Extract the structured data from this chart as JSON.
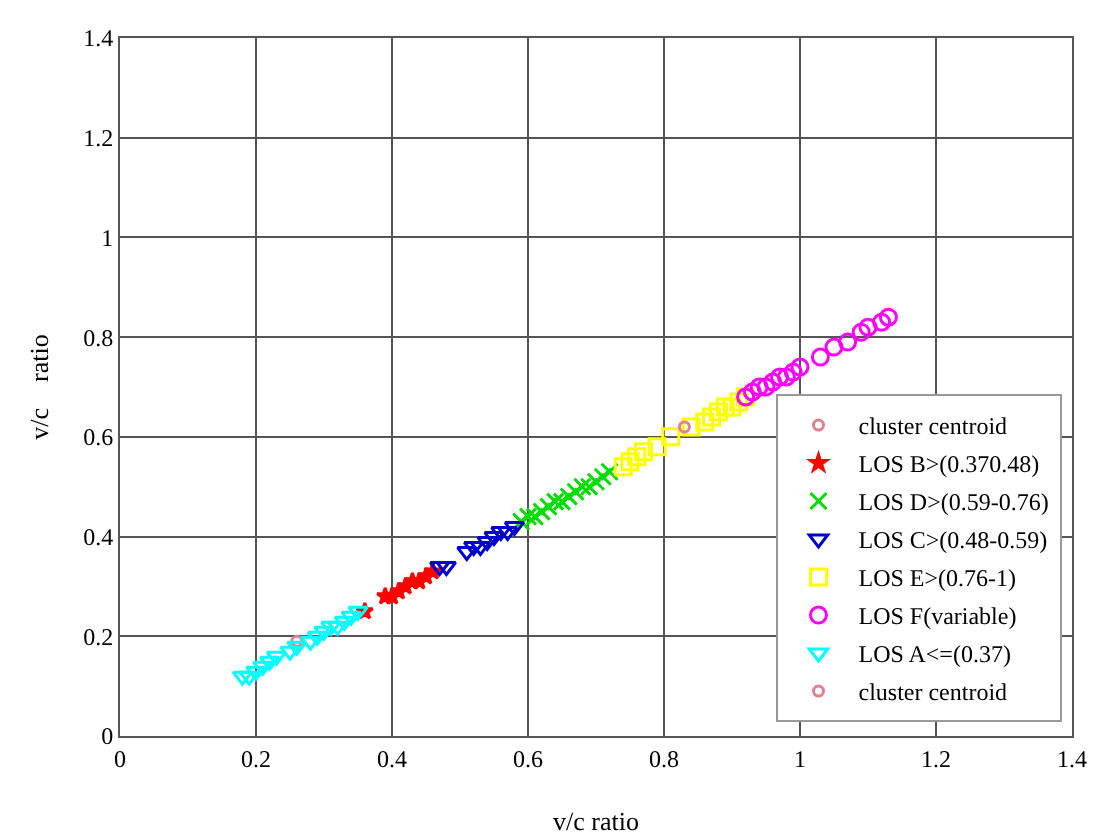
{
  "chart_data": {
    "type": "scatter",
    "xlabel": "v/c ratio",
    "ylabel": "v/c    ratio",
    "xlim": [
      0,
      1.4
    ],
    "xticks": [
      0,
      0.2,
      0.4,
      0.6,
      0.8,
      1,
      1.2,
      1.4
    ],
    "ylim": [
      0,
      1.4
    ],
    "yticks": [
      0,
      0.2,
      0.4,
      0.6,
      0.8,
      1,
      1.2,
      1.4
    ],
    "grid": true,
    "legend": "bottom right",
    "series": [
      {
        "name": "cluster centroid",
        "color": "#e08090",
        "marker": "circle",
        "x": [
          0.26
        ],
        "values": [
          0.19
        ]
      },
      {
        "name": "LOS B>(0.370.48)",
        "color": "#ff0000",
        "marker": "star",
        "x": [
          0.36,
          0.39,
          0.4,
          0.41,
          0.42,
          0.43,
          0.44,
          0.45,
          0.46
        ],
        "values": [
          0.25,
          0.28,
          0.28,
          0.29,
          0.3,
          0.31,
          0.31,
          0.32,
          0.33
        ]
      },
      {
        "name": "LOS D>(0.59-0.76)",
        "color": "#00dd00",
        "marker": "cross",
        "x": [
          0.59,
          0.6,
          0.61,
          0.62,
          0.63,
          0.64,
          0.65,
          0.66,
          0.67,
          0.68,
          0.69,
          0.7,
          0.71,
          0.72
        ],
        "values": [
          0.43,
          0.44,
          0.44,
          0.45,
          0.46,
          0.47,
          0.47,
          0.48,
          0.49,
          0.5,
          0.5,
          0.51,
          0.52,
          0.53
        ]
      },
      {
        "name": "LOS C>(0.48-0.59)",
        "color": "#0000cc",
        "marker": "triangle",
        "x": [
          0.47,
          0.48,
          0.51,
          0.52,
          0.53,
          0.54,
          0.55,
          0.56,
          0.57,
          0.58
        ],
        "values": [
          0.34,
          0.34,
          0.37,
          0.38,
          0.38,
          0.39,
          0.4,
          0.41,
          0.41,
          0.42
        ]
      },
      {
        "name": "LOS E>(0.76-1)",
        "color": "#ffff00",
        "marker": "square",
        "x": [
          0.74,
          0.75,
          0.76,
          0.77,
          0.79,
          0.81,
          0.84,
          0.86,
          0.87,
          0.88,
          0.89,
          0.9,
          0.91,
          0.92
        ],
        "values": [
          0.54,
          0.55,
          0.56,
          0.57,
          0.58,
          0.6,
          0.62,
          0.63,
          0.64,
          0.65,
          0.66,
          0.66,
          0.67,
          0.68
        ]
      },
      {
        "name": "LOS F(variable)",
        "color": "#ff00ff",
        "marker": "circle",
        "x": [
          0.92,
          0.93,
          0.94,
          0.95,
          0.96,
          0.97,
          0.98,
          0.99,
          1,
          1.03,
          1.05,
          1.07,
          1.09,
          1.1,
          1.12,
          1.13
        ],
        "values": [
          0.68,
          0.69,
          0.7,
          0.7,
          0.71,
          0.72,
          0.72,
          0.73,
          0.74,
          0.76,
          0.78,
          0.79,
          0.81,
          0.82,
          0.83,
          0.84
        ]
      },
      {
        "name": "LOS A<=(0.37)",
        "color": "#00ffff",
        "marker": "triangle",
        "x": [
          0.18,
          0.19,
          0.2,
          0.21,
          0.22,
          0.23,
          0.25,
          0.26,
          0.28,
          0.29,
          0.3,
          0.31,
          0.32,
          0.33,
          0.34,
          0.35
        ],
        "values": [
          0.12,
          0.12,
          0.13,
          0.14,
          0.15,
          0.16,
          0.17,
          0.18,
          0.19,
          0.2,
          0.21,
          0.22,
          0.22,
          0.23,
          0.24,
          0.25
        ]
      },
      {
        "name": "cluster centroid",
        "color": "#e08090",
        "marker": "circle",
        "x": [
          0.83
        ],
        "values": [
          0.62
        ]
      }
    ]
  }
}
